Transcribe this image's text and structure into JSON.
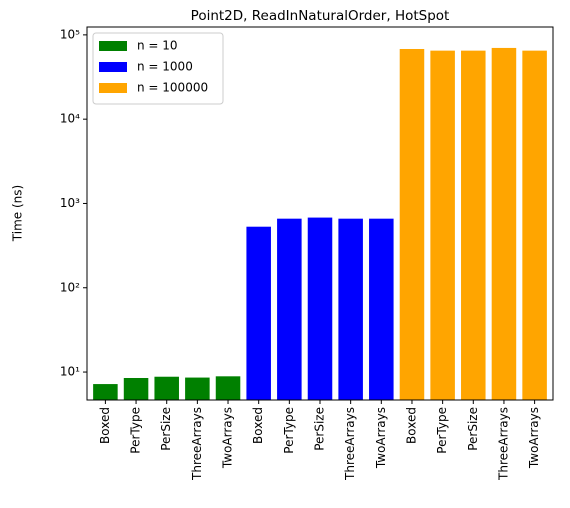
{
  "chart_data": {
    "type": "bar",
    "title": "Point2D, ReadInNaturalOrder, HotSpot",
    "y_label": "Time (ns)",
    "categories": [
      "Boxed",
      "PerType",
      "PerSize",
      "ThreeArrays",
      "TwoArrays",
      "Boxed",
      "PerType",
      "PerSize",
      "ThreeArrays",
      "TwoArrays",
      "Boxed",
      "PerType",
      "PerSize",
      "ThreeArrays",
      "TwoArrays"
    ],
    "series": [
      {
        "name": "n = 10",
        "color": "#008000",
        "values": [
          7.2,
          8.5,
          8.8,
          8.6,
          8.9,
          null,
          null,
          null,
          null,
          null,
          null,
          null,
          null,
          null,
          null
        ]
      },
      {
        "name": "n = 1000",
        "color": "#0000ff",
        "values": [
          null,
          null,
          null,
          null,
          null,
          530,
          660,
          680,
          660,
          660,
          null,
          null,
          null,
          null,
          null
        ]
      },
      {
        "name": "n = 100000",
        "color": "#ffa500",
        "values": [
          null,
          null,
          null,
          null,
          null,
          null,
          null,
          null,
          null,
          null,
          68000,
          65000,
          65000,
          70000,
          65000
        ]
      }
    ],
    "y_scale": "log",
    "ylim": [
      4.66,
      124000
    ],
    "yticks": [
      {
        "value": 10,
        "label": "10¹"
      },
      {
        "value": 100,
        "label": "10²"
      },
      {
        "value": 1000,
        "label": "10³"
      },
      {
        "value": 10000,
        "label": "10⁴"
      },
      {
        "value": 100000,
        "label": "10⁵"
      }
    ],
    "legend": "upper left"
  }
}
